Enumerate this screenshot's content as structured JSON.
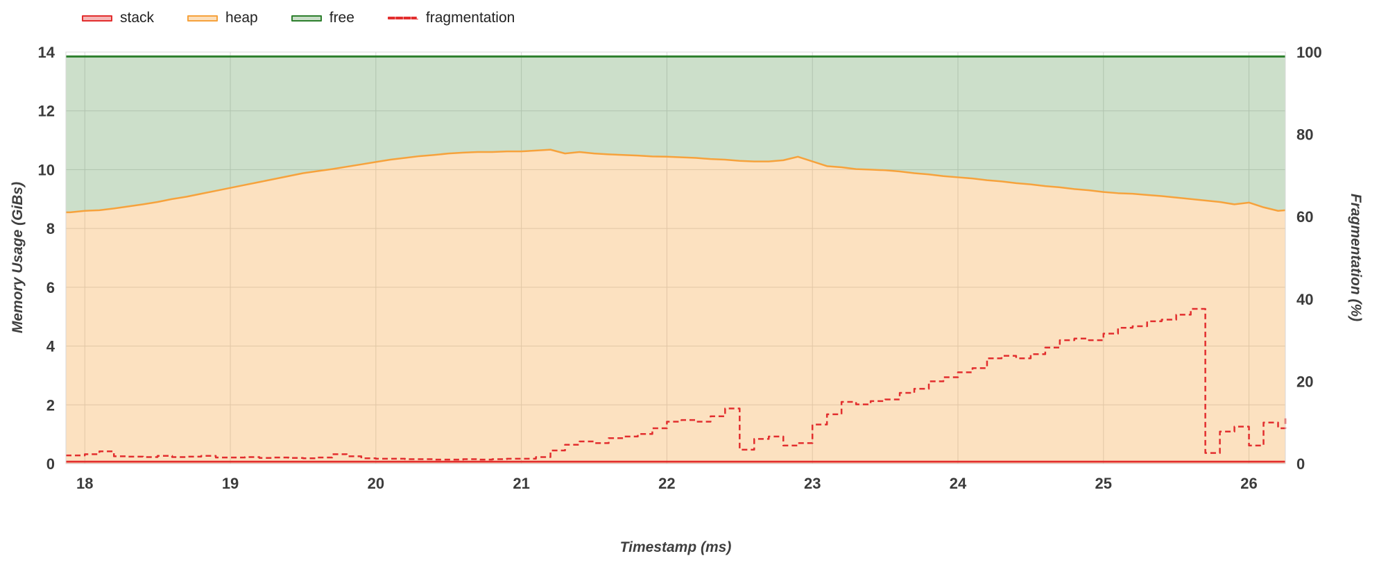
{
  "legend": {
    "items": [
      {
        "label": "stack",
        "color": "#e22e2e",
        "fill": "rgba(226,46,46,0.35)",
        "style": "area"
      },
      {
        "label": "heap",
        "color": "#f6a23c",
        "fill": "rgba(246,162,60,0.35)",
        "style": "area"
      },
      {
        "label": "free",
        "color": "#2d7f2d",
        "fill": "rgba(85,150,80,0.32)",
        "style": "area"
      },
      {
        "label": "fragmentation",
        "color": "#e22e2e",
        "style": "dashed"
      }
    ]
  },
  "chart_data": {
    "type": "area",
    "title": "",
    "xlabel": "Timestamp (ms)",
    "ylabel_left": "Memory Usage (GiBs)",
    "ylabel_right": "Fragmentation (%)",
    "xlim": [
      17.87,
      26.25
    ],
    "ylim_left": [
      0,
      14
    ],
    "ylim_right": [
      0,
      100
    ],
    "x_ticks": [
      18,
      19,
      20,
      21,
      22,
      23,
      24,
      25,
      26
    ],
    "y_left_ticks": [
      0,
      2,
      4,
      6,
      8,
      10,
      12,
      14
    ],
    "y_right_ticks": [
      0,
      20,
      40,
      60,
      80,
      100
    ],
    "grid": true,
    "legend_position": "top-left",
    "colors": {
      "stack": "#e22e2e",
      "heap": "#f6a23c",
      "free": "#2d7f2d",
      "fragmentation": "#e22e2e",
      "grid": "#d8d8d8",
      "tick_text": "#3b3b3b",
      "stack_fill": "rgba(226,46,46,0.30)",
      "heap_fill": "rgba(246,162,60,0.32)",
      "free_fill": "rgba(85,150,80,0.30)"
    },
    "x": [
      17.87,
      17.9,
      18.0,
      18.1,
      18.2,
      18.3,
      18.4,
      18.5,
      18.6,
      18.7,
      18.8,
      18.9,
      19.0,
      19.1,
      19.2,
      19.3,
      19.4,
      19.5,
      19.6,
      19.7,
      19.8,
      19.9,
      20.0,
      20.1,
      20.2,
      20.3,
      20.4,
      20.5,
      20.6,
      20.7,
      20.8,
      20.9,
      21.0,
      21.1,
      21.2,
      21.3,
      21.4,
      21.5,
      21.6,
      21.7,
      21.8,
      21.9,
      22.0,
      22.1,
      22.2,
      22.3,
      22.4,
      22.5,
      22.6,
      22.7,
      22.8,
      22.9,
      23.0,
      23.1,
      23.2,
      23.3,
      23.4,
      23.5,
      23.6,
      23.7,
      23.8,
      23.9,
      24.0,
      24.1,
      24.2,
      24.3,
      24.4,
      24.5,
      24.6,
      24.7,
      24.8,
      24.9,
      25.0,
      25.1,
      25.2,
      25.3,
      25.4,
      25.5,
      25.6,
      25.7,
      25.8,
      25.9,
      26.0,
      26.1,
      26.2,
      26.25
    ],
    "series": [
      {
        "name": "stack",
        "axis": "left",
        "constant": 0.07
      },
      {
        "name": "heap",
        "axis": "left",
        "values": [
          8.55,
          8.55,
          8.6,
          8.62,
          8.68,
          8.75,
          8.82,
          8.9,
          9.0,
          9.08,
          9.18,
          9.28,
          9.38,
          9.48,
          9.58,
          9.68,
          9.78,
          9.88,
          9.95,
          10.02,
          10.1,
          10.18,
          10.26,
          10.34,
          10.4,
          10.46,
          10.5,
          10.55,
          10.58,
          10.6,
          10.6,
          10.62,
          10.62,
          10.65,
          10.68,
          10.55,
          10.6,
          10.55,
          10.52,
          10.5,
          10.48,
          10.45,
          10.44,
          10.42,
          10.4,
          10.36,
          10.34,
          10.3,
          10.28,
          10.28,
          10.32,
          10.44,
          10.28,
          10.12,
          10.08,
          10.02,
          10.0,
          9.98,
          9.94,
          9.88,
          9.84,
          9.78,
          9.74,
          9.7,
          9.64,
          9.6,
          9.54,
          9.5,
          9.44,
          9.4,
          9.34,
          9.3,
          9.24,
          9.2,
          9.18,
          9.14,
          9.1,
          9.05,
          9.0,
          8.95,
          8.9,
          8.82,
          8.88,
          8.72,
          8.6,
          8.62
        ]
      },
      {
        "name": "free",
        "axis": "left",
        "constant": 13.85
      },
      {
        "name": "fragmentation",
        "axis": "right",
        "values": [
          2.0,
          2.0,
          2.3,
          3.0,
          1.8,
          1.7,
          1.6,
          1.9,
          1.6,
          1.7,
          1.9,
          1.5,
          1.5,
          1.6,
          1.4,
          1.5,
          1.4,
          1.3,
          1.5,
          2.3,
          1.8,
          1.3,
          1.2,
          1.2,
          1.1,
          1.1,
          1.0,
          1.0,
          1.1,
          1.0,
          1.1,
          1.2,
          1.2,
          1.6,
          3.2,
          4.6,
          5.4,
          5.0,
          6.2,
          6.6,
          7.2,
          8.6,
          10.2,
          10.6,
          10.2,
          11.5,
          13.4,
          3.4,
          6.0,
          6.6,
          4.4,
          5.0,
          9.5,
          12.0,
          15.0,
          14.4,
          15.2,
          15.6,
          17.2,
          18.2,
          20.0,
          21.0,
          22.2,
          23.2,
          25.6,
          26.2,
          25.6,
          26.6,
          28.2,
          30.0,
          30.4,
          30.0,
          31.6,
          33.0,
          33.4,
          34.6,
          35.0,
          36.2,
          37.6,
          2.6,
          7.8,
          9.0,
          4.4,
          10.0,
          8.6,
          11.0
        ]
      }
    ]
  }
}
